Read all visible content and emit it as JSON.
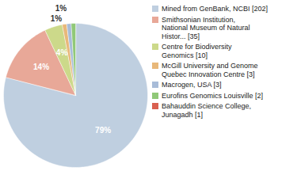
{
  "chart_data": {
    "type": "pie",
    "categories": [
      "Mined from GenBank, NCBI [202]",
      "Smithsonian Institution,\nNational Museum of Natural\nHistor... [35]",
      "Centre for Biodiversity\nGenomics [10]",
      "McGill University and Genome\nQuebec Innovation Centre [3]",
      "Macrogen, USA [3]",
      "Eurofins Genomics Louisville [2]",
      "Bahauddin Science College,\nJunagadh [1]"
    ],
    "values": [
      79,
      14,
      4,
      1,
      1,
      1,
      0
    ],
    "value_labels": [
      "79%",
      "14%",
      "4%",
      "1%",
      "1%",
      null,
      null
    ],
    "colors": [
      "#bfcfe0",
      "#e8a898",
      "#ccd98a",
      "#e8b87a",
      "#a8bcd8",
      "#90c878",
      "#d96050"
    ],
    "data_labels": true,
    "legend": "right"
  }
}
